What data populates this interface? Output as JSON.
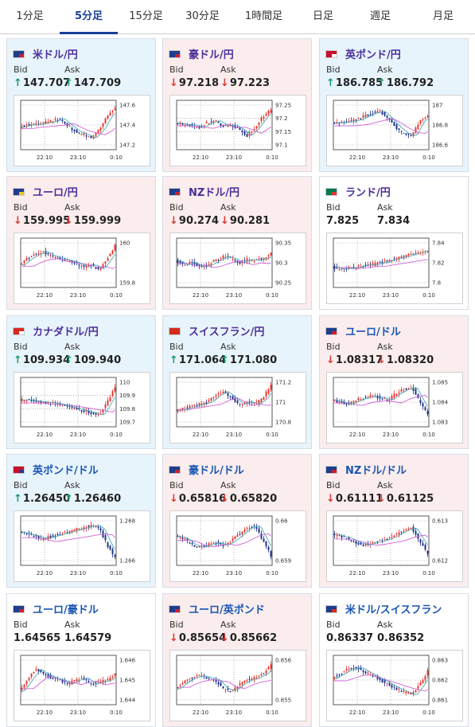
{
  "tabs": [
    {
      "label": "1分足",
      "active": false
    },
    {
      "label": "5分足",
      "active": true
    },
    {
      "label": "15分足",
      "active": false
    },
    {
      "label": "30分足",
      "active": false
    },
    {
      "label": "1時間足",
      "active": false
    },
    {
      "label": "日足",
      "active": false
    },
    {
      "label": "週足",
      "active": false
    },
    {
      "label": "月足",
      "active": false
    }
  ],
  "labels": {
    "bid": "Bid",
    "ask": "Ask"
  },
  "colors": {
    "up_bg": "#e8f4fc",
    "down_bg": "#fbeded",
    "up_arrow": "#1a9a6e",
    "down_arrow": "#d83a3a",
    "candle_up": "#e8332c",
    "candle_down": "#1b2f8a",
    "ma_short": "#4aa8b8",
    "ma_long": "#d060d8"
  },
  "cards": [
    {
      "title": "米ドル/円",
      "flag": [
        "#1d3e8c",
        "#cc1f2f"
      ],
      "trend": "up",
      "bid": "147.707",
      "ask": "147.709",
      "bid_dir": "up",
      "ask_dir": "up",
      "ylabels": [
        "147.6",
        "147.4",
        "147.2"
      ],
      "xlabels": [
        "22:10",
        "23:10",
        "0:10"
      ],
      "shape": [
        0.55,
        0.5,
        0.48,
        0.45,
        0.42,
        0.35,
        0.5,
        0.65,
        0.72,
        0.8,
        0.62,
        0.3,
        0.1
      ]
    },
    {
      "title": "豪ドル/円",
      "flag": [
        "#1d3e8c",
        "#cc1f2f"
      ],
      "trend": "down",
      "bid": "97.218",
      "ask": "97.223",
      "bid_dir": "down",
      "ask_dir": "down",
      "ylabels": [
        "97.25",
        "97.2",
        "97.15",
        "97.1"
      ],
      "xlabels": [
        "22:10",
        "23:10",
        "0:10"
      ],
      "shape": [
        0.45,
        0.5,
        0.5,
        0.55,
        0.45,
        0.4,
        0.52,
        0.5,
        0.6,
        0.75,
        0.55,
        0.3,
        0.15
      ]
    },
    {
      "title": "英ポンド/円",
      "flag": [
        "#c8102e",
        "#ffffff"
      ],
      "trend": "up",
      "bid": "186.785",
      "ask": "186.792",
      "bid_dir": "up",
      "ask_dir": "up",
      "ylabels": [
        "187",
        "186.8",
        "186.6"
      ],
      "xlabels": [
        "22:10",
        "23:10",
        "0:10"
      ],
      "shape": [
        0.45,
        0.45,
        0.42,
        0.38,
        0.3,
        0.22,
        0.18,
        0.35,
        0.55,
        0.7,
        0.75,
        0.4,
        0.3
      ]
    },
    {
      "title": "ユーロ/円",
      "flag": [
        "#1d3e8c",
        "#f0c419"
      ],
      "trend": "down",
      "bid": "159.995",
      "ask": "159.999",
      "bid_dir": "down",
      "ask_dir": "down",
      "ylabels": [
        "160",
        "159.8"
      ],
      "xlabels": [
        "22:10",
        "23:10",
        "0:10"
      ],
      "shape": [
        0.55,
        0.4,
        0.3,
        0.25,
        0.35,
        0.4,
        0.45,
        0.5,
        0.6,
        0.55,
        0.65,
        0.4,
        0.1
      ]
    },
    {
      "title": "NZドル/円",
      "flag": [
        "#1d3e8c",
        "#cc1f2f"
      ],
      "trend": "down",
      "bid": "90.274",
      "ask": "90.281",
      "bid_dir": "down",
      "ask_dir": "down",
      "ylabels": [
        "90.35",
        "90.3",
        "90.25"
      ],
      "xlabels": [
        "22:10",
        "23:10",
        "0:10"
      ],
      "shape": [
        0.45,
        0.55,
        0.5,
        0.6,
        0.55,
        0.45,
        0.35,
        0.4,
        0.5,
        0.42,
        0.45,
        0.4,
        0.3
      ]
    },
    {
      "title": "ランド/円",
      "flag": [
        "#007a4d",
        "#de3831"
      ],
      "trend": "flat",
      "bid": "7.825",
      "ask": "7.834",
      "bid_dir": "",
      "ask_dir": "",
      "ylabels": [
        "7.84",
        "7.82",
        "7.8"
      ],
      "xlabels": [
        "22:10",
        "23:10",
        "0:10"
      ],
      "shape": [
        0.6,
        0.65,
        0.62,
        0.6,
        0.55,
        0.55,
        0.5,
        0.45,
        0.4,
        0.35,
        0.3,
        0.25,
        0.2
      ]
    },
    {
      "title": "カナダドル/円",
      "flag": [
        "#d52b1e",
        "#ffffff"
      ],
      "trend": "up",
      "bid": "109.934",
      "ask": "109.940",
      "bid_dir": "up",
      "ask_dir": "up",
      "ylabels": [
        "110",
        "109.9",
        "109.8",
        "109.7"
      ],
      "xlabels": [
        "22:10",
        "23:10",
        "0:10"
      ],
      "shape": [
        0.45,
        0.45,
        0.48,
        0.5,
        0.52,
        0.55,
        0.6,
        0.65,
        0.7,
        0.75,
        0.8,
        0.5,
        0.15
      ]
    },
    {
      "title": "スイスフラン/円",
      "flag": [
        "#d52b1e",
        "#d52b1e"
      ],
      "trend": "up",
      "bid": "171.064",
      "ask": "171.080",
      "bid_dir": "up",
      "ask_dir": "up",
      "ylabels": [
        "171.2",
        "171",
        "170.8"
      ],
      "xlabels": [
        "22:10",
        "23:10",
        "0:10"
      ],
      "shape": [
        0.7,
        0.65,
        0.6,
        0.55,
        0.5,
        0.35,
        0.25,
        0.4,
        0.55,
        0.5,
        0.55,
        0.4,
        0.1
      ]
    },
    {
      "title": "ユーロ/ドル",
      "flag": [
        "#1d3e8c",
        "#cc1f2f"
      ],
      "trend": "down",
      "bid": "1.08317",
      "ask": "1.08320",
      "bid_dir": "down",
      "ask_dir": "down",
      "ylabels": [
        "1.085",
        "1.084",
        "1.083"
      ],
      "xlabels": [
        "22:10",
        "23:10",
        "0:10"
      ],
      "shape": [
        0.45,
        0.5,
        0.55,
        0.45,
        0.4,
        0.35,
        0.4,
        0.45,
        0.3,
        0.2,
        0.15,
        0.5,
        0.8
      ]
    },
    {
      "title": "英ポンド/ドル",
      "flag": [
        "#c8102e",
        "#1d3e8c"
      ],
      "trend": "up",
      "bid": "1.26450",
      "ask": "1.26460",
      "bid_dir": "up",
      "ask_dir": "up",
      "ylabels": [
        "1.268",
        "1.266"
      ],
      "xlabels": [
        "22:10",
        "23:10",
        "0:10"
      ],
      "shape": [
        0.3,
        0.35,
        0.4,
        0.45,
        0.4,
        0.35,
        0.3,
        0.25,
        0.2,
        0.15,
        0.2,
        0.6,
        0.9
      ]
    },
    {
      "title": "豪ドル/ドル",
      "flag": [
        "#1d3e8c",
        "#cc1f2f"
      ],
      "trend": "down",
      "bid": "0.65816",
      "ask": "0.65820",
      "bid_dir": "down",
      "ask_dir": "down",
      "ylabels": [
        "0.66",
        "0.659"
      ],
      "xlabels": [
        "22:10",
        "23:10",
        "0:10"
      ],
      "shape": [
        0.4,
        0.45,
        0.6,
        0.65,
        0.6,
        0.55,
        0.6,
        0.5,
        0.35,
        0.2,
        0.15,
        0.5,
        0.85
      ]
    },
    {
      "title": "NZドル/ドル",
      "flag": [
        "#1d3e8c",
        "#cc1f2f"
      ],
      "trend": "down",
      "bid": "0.61111",
      "ask": "0.61125",
      "bid_dir": "down",
      "ask_dir": "down",
      "ylabels": [
        "0.613",
        "0.612"
      ],
      "xlabels": [
        "22:10",
        "23:10",
        "0:10"
      ],
      "shape": [
        0.35,
        0.4,
        0.45,
        0.55,
        0.6,
        0.55,
        0.5,
        0.45,
        0.35,
        0.25,
        0.2,
        0.5,
        0.8
      ]
    },
    {
      "title": "ユーロ/豪ドル",
      "flag": [
        "#1d3e8c",
        "#cc1f2f"
      ],
      "trend": "flat",
      "bid": "1.64565",
      "ask": "1.64579",
      "bid_dir": "",
      "ask_dir": "",
      "ylabels": [
        "1.646",
        "1.645",
        "1.644"
      ],
      "xlabels": [
        "22:10",
        "23:10",
        "0:10"
      ],
      "shape": [
        0.75,
        0.5,
        0.25,
        0.35,
        0.45,
        0.5,
        0.6,
        0.5,
        0.45,
        0.6,
        0.55,
        0.5,
        0.35
      ]
    },
    {
      "title": "ユーロ/英ポンド",
      "flag": [
        "#1d3e8c",
        "#cc1f2f"
      ],
      "trend": "down",
      "bid": "0.85654",
      "ask": "0.85662",
      "bid_dir": "down",
      "ask_dir": "down",
      "ylabels": [
        "0.856",
        "0.855"
      ],
      "xlabels": [
        "22:10",
        "23:10",
        "0:10"
      ],
      "shape": [
        0.7,
        0.55,
        0.45,
        0.4,
        0.45,
        0.5,
        0.7,
        0.75,
        0.6,
        0.5,
        0.45,
        0.35,
        0.15
      ]
    },
    {
      "title": "米ドル/スイスフラン",
      "flag": [
        "#1d3e8c",
        "#d52b1e"
      ],
      "trend": "flat",
      "bid": "0.86337",
      "ask": "0.86352",
      "bid_dir": "",
      "ask_dir": "",
      "ylabels": [
        "0.863",
        "0.862",
        "0.861"
      ],
      "xlabels": [
        "22:10",
        "23:10",
        "0:10"
      ],
      "shape": [
        0.45,
        0.35,
        0.25,
        0.2,
        0.3,
        0.4,
        0.5,
        0.6,
        0.7,
        0.78,
        0.85,
        0.6,
        0.3
      ]
    }
  ]
}
